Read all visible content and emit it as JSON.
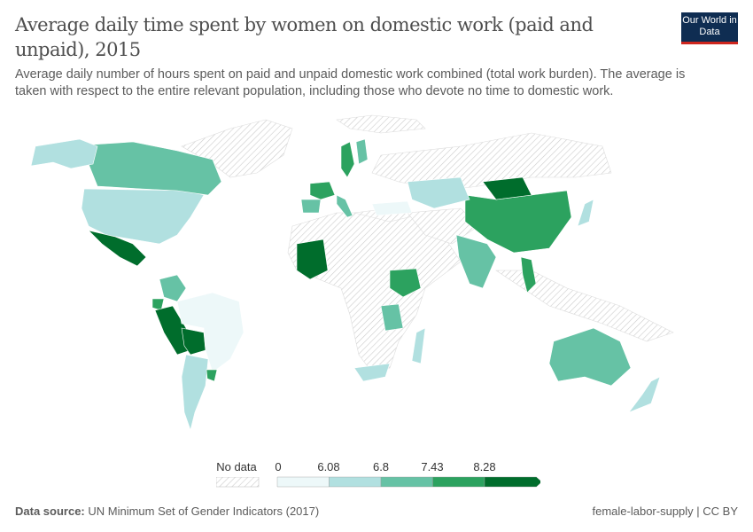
{
  "header": {
    "title": "Average daily time spent by women on domestic work (paid and unpaid), 2015",
    "subtitle": "Average daily number of hours spent on paid and unpaid domestic work combined (total work burden). The average is taken with respect to the entire relevant population, including those who devote no time to domestic work.",
    "logo": "Our World in Data"
  },
  "legend": {
    "no_data_label": "No data",
    "thresholds": [
      "0",
      "6.08",
      "6.8",
      "7.43",
      "8.28"
    ],
    "colors": [
      "#edf8f9",
      "#b1e0e0",
      "#66c2a5",
      "#2ca25f",
      "#006d2c"
    ],
    "no_data_color": "#e6e6e6"
  },
  "map": {
    "regions": [
      {
        "name": "United States",
        "bin": 1
      },
      {
        "name": "Canada",
        "bin": 2
      },
      {
        "name": "Alaska",
        "bin": 1
      },
      {
        "name": "Mexico",
        "bin": 4
      },
      {
        "name": "Colombia",
        "bin": 2
      },
      {
        "name": "Ecuador",
        "bin": 3
      },
      {
        "name": "Peru",
        "bin": 4
      },
      {
        "name": "Bolivia",
        "bin": 4
      },
      {
        "name": "Brazil",
        "bin": 0
      },
      {
        "name": "Argentina",
        "bin": 1
      },
      {
        "name": "Uruguay",
        "bin": 3
      },
      {
        "name": "Mali",
        "bin": 4
      },
      {
        "name": "Ethiopia",
        "bin": 3
      },
      {
        "name": "Tanzania",
        "bin": 2
      },
      {
        "name": "Madagascar",
        "bin": 1
      },
      {
        "name": "South Africa",
        "bin": 1
      },
      {
        "name": "China",
        "bin": 3
      },
      {
        "name": "Mongolia",
        "bin": 4
      },
      {
        "name": "Kazakhstan",
        "bin": 1
      },
      {
        "name": "India",
        "bin": 2
      },
      {
        "name": "Thailand",
        "bin": 3
      },
      {
        "name": "Japan",
        "bin": 1
      },
      {
        "name": "Australia",
        "bin": 2
      },
      {
        "name": "New Zealand",
        "bin": 1
      },
      {
        "name": "Sweden",
        "bin": 3
      },
      {
        "name": "Finland",
        "bin": 2
      },
      {
        "name": "Spain",
        "bin": 2
      },
      {
        "name": "France",
        "bin": 3
      },
      {
        "name": "Italy",
        "bin": 2
      },
      {
        "name": "Turkey",
        "bin": 0
      }
    ]
  },
  "footer": {
    "source_label": "Data source:",
    "source": "UN Minimum Set of Gender Indicators (2017)",
    "right": "female-labor-supply | CC BY"
  }
}
